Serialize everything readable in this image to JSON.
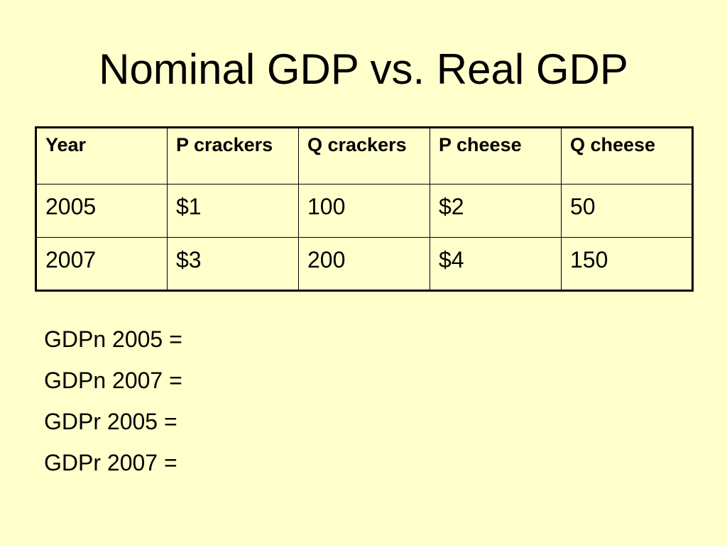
{
  "slide": {
    "title": "Nominal GDP vs. Real GDP"
  },
  "table": {
    "headers": [
      "Year",
      "P crackers",
      "Q crackers",
      "P cheese",
      "Q cheese"
    ],
    "rows": [
      [
        "2005",
        "$1",
        "100",
        "$2",
        "50"
      ],
      [
        "2007",
        "$3",
        "200",
        "$4",
        "150"
      ]
    ]
  },
  "formulas": [
    "GDPn 2005 =",
    "GDPn 2007 =",
    "GDPr 2005 =",
    "GDPr 2007 ="
  ],
  "colors": {
    "background": "#ffffcc",
    "text": "#000000"
  }
}
